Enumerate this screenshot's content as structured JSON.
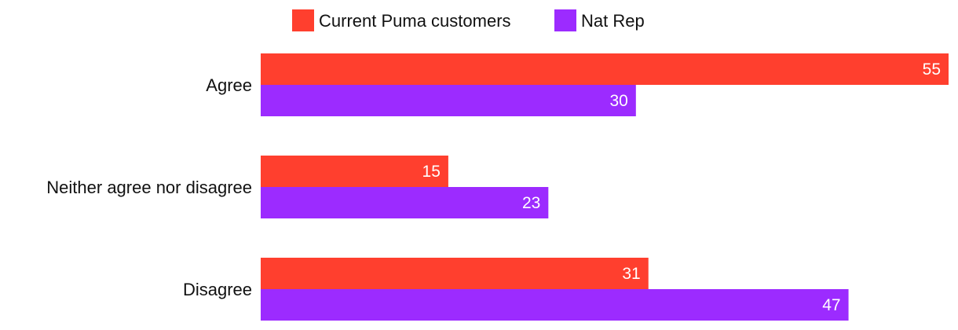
{
  "chart_data": {
    "type": "bar",
    "orientation": "horizontal",
    "categories": [
      "Agree",
      "Neither agree nor disagree",
      "Disagree"
    ],
    "series": [
      {
        "name": "Current Puma customers",
        "color": "#ff3f2e",
        "values": [
          55,
          15,
          31
        ]
      },
      {
        "name": "Nat Rep",
        "color": "#9c2bff",
        "values": [
          30,
          23,
          47
        ]
      }
    ],
    "xlim": [
      0,
      55
    ],
    "grid": false,
    "legend": "top-center",
    "data_labels": true
  }
}
